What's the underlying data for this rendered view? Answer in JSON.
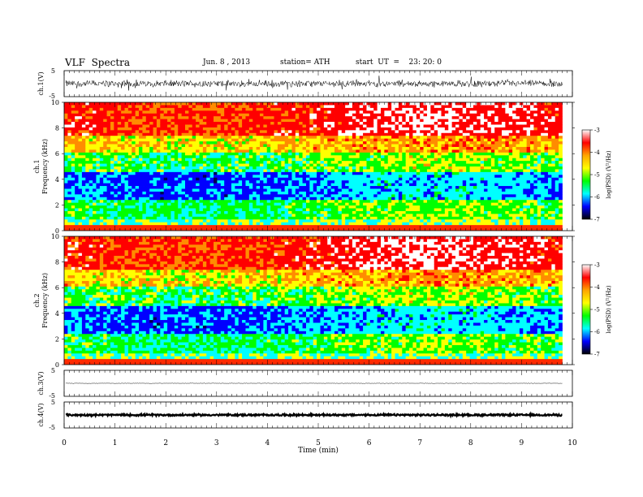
{
  "header": {
    "title": "VLF  Spectra",
    "date": "Jun. 8 , 2013",
    "station": "station= ATH",
    "start": "start  UT  =    23: 20: 0"
  },
  "chart_data": {
    "type": "heatmap",
    "xlabel": "Time  (min)",
    "xlim": [
      0,
      10
    ],
    "xticks": [
      "0",
      "1",
      "2",
      "3",
      "4",
      "5",
      "6",
      "7",
      "8",
      "9",
      "10"
    ],
    "data_end_min": 9.8,
    "waveforms": [
      {
        "id": "ch1",
        "ylabel": "ch.1(V)",
        "yticks": [
          "5",
          "-5"
        ],
        "ylim": [
          -5,
          5
        ],
        "level": 0.0,
        "amplitude": 2.2
      },
      {
        "id": "ch3",
        "ylabel": "ch.3(V)",
        "yticks": [
          "5",
          "-5"
        ],
        "ylim": [
          -5,
          5
        ],
        "level": 0.0,
        "amplitude": 0.15
      },
      {
        "id": "ch4",
        "ylabel": "ch.4(V)",
        "yticks": [
          "5",
          "-5"
        ],
        "ylim": [
          -5,
          5
        ],
        "level": 0.0,
        "amplitude": 0.6
      }
    ],
    "spectrograms": [
      {
        "id": "ch1",
        "ylabel_channel": "ch.1",
        "ylabel": "Frequency  (kHz)",
        "ylim": [
          0,
          10
        ],
        "yticks": [
          "0",
          "2",
          "4",
          "6",
          "8",
          "10"
        ]
      },
      {
        "id": "ch2",
        "ylabel_channel": "ch.2",
        "ylabel": "Frequency  (kHz)",
        "ylim": [
          0,
          10
        ],
        "yticks": [
          "0",
          "2",
          "4",
          "6",
          "8",
          "10"
        ]
      }
    ],
    "colorbar": {
      "label": "log(PSD) (V²/Hz)",
      "range": [
        -7,
        -3
      ],
      "ticks": [
        "-3",
        "-4",
        "-5",
        "-6",
        "-7"
      ],
      "colors": [
        "#ffffff",
        "#ff0000",
        "#ffa500",
        "#ffff00",
        "#00ff00",
        "#00ffff",
        "#0000ff",
        "#000000"
      ]
    }
  }
}
